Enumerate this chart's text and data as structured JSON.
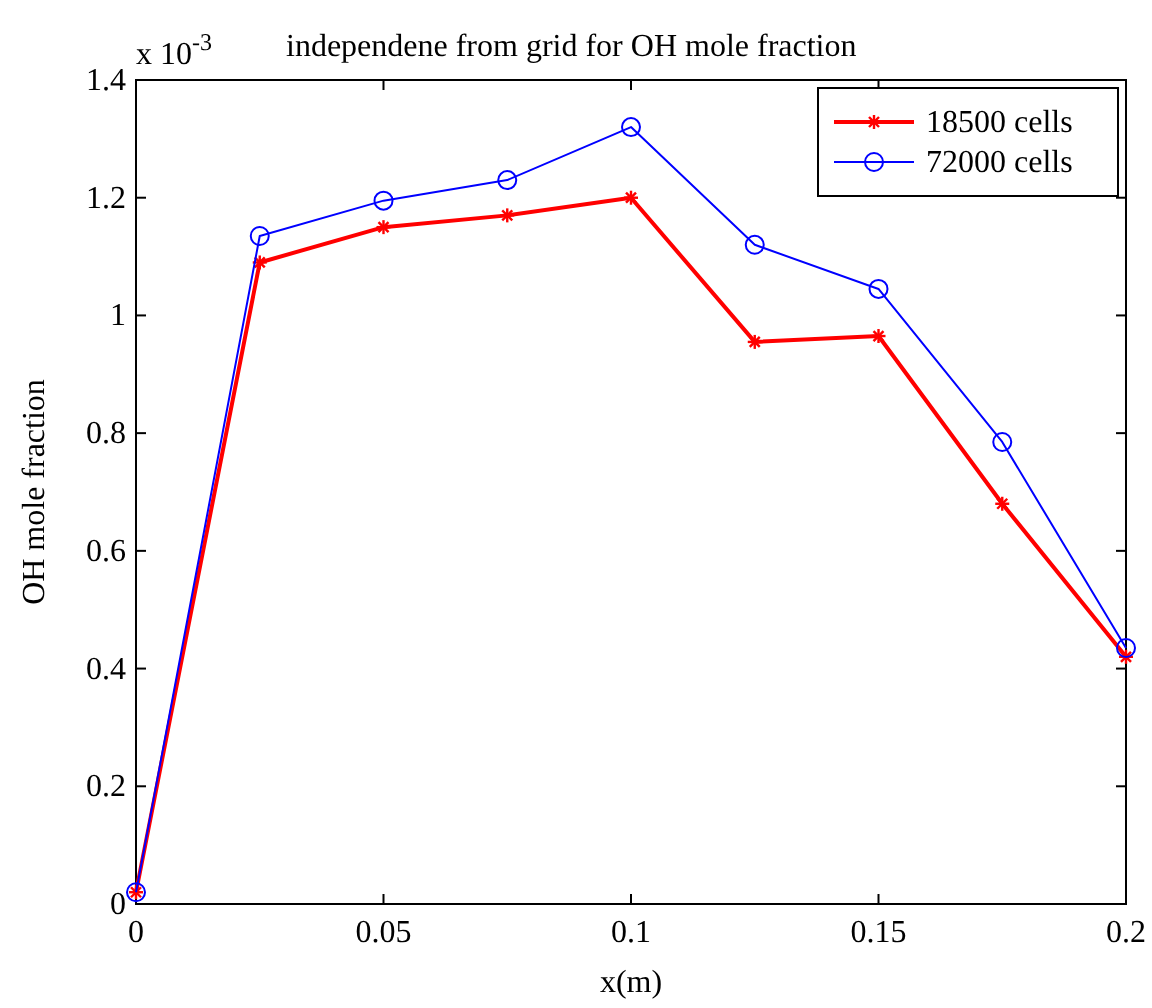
{
  "chart_data": {
    "type": "line",
    "title": "independene from grid for OH mole fraction",
    "xlabel": "x(m)",
    "ylabel": "OH mole fraction",
    "annotations": [
      "x 10$^{-3}$"
    ],
    "x": [
      0,
      0.025,
      0.05,
      0.075,
      0.1,
      0.125,
      0.15,
      0.175,
      0.2
    ],
    "series": [
      {
        "name": "18500 cells",
        "color": "#ff0000",
        "marker": "cross",
        "values": [
          0.02,
          1.09,
          1.15,
          1.17,
          1.2,
          0.955,
          0.965,
          0.68,
          0.42
        ]
      },
      {
        "name": "72000 cells",
        "color": "#0000ff",
        "marker": "circle",
        "values": [
          0.02,
          1.135,
          1.195,
          1.23,
          1.32,
          1.12,
          1.045,
          0.785,
          0.435
        ]
      }
    ],
    "xlim": [
      0,
      0.2
    ],
    "xticks": [
      0,
      0.05,
      0.1,
      0.15,
      0.2
    ],
    "ylim": [
      0,
      1.4
    ],
    "yticks": [
      0,
      0.2,
      0.4,
      0.6,
      0.8,
      1,
      1.2,
      1.4
    ],
    "grid": false,
    "legend": "top right"
  }
}
